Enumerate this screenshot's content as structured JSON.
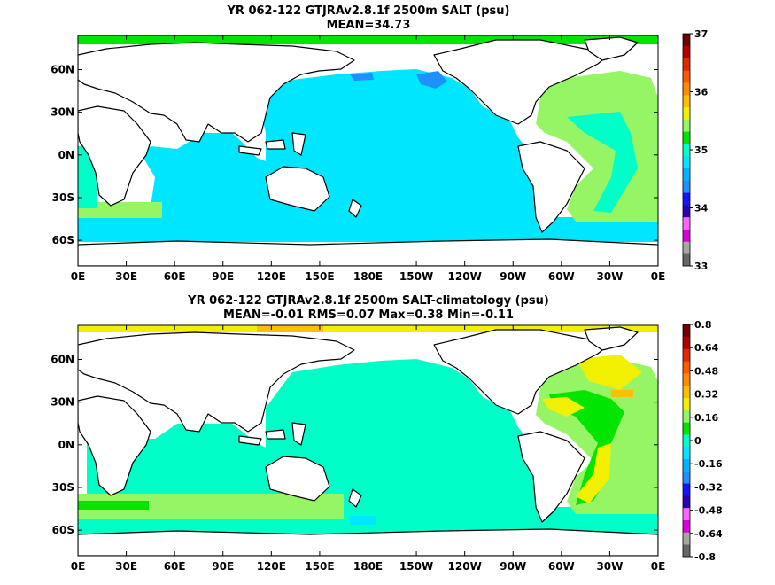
{
  "chart_data": [
    {
      "type": "heatmap",
      "title": "YR 062-122 GTJRAv2.8.1f 2500m SALT (psu)",
      "subtitle": "MEAN=34.73",
      "x_ticks": [
        "0E",
        "30E",
        "60E",
        "90E",
        "120E",
        "150E",
        "180E",
        "150W",
        "120W",
        "90W",
        "60W",
        "30W",
        "0E"
      ],
      "y_ticks": [
        "60N",
        "30N",
        "0N",
        "30S",
        "60S"
      ],
      "colorbar": {
        "range": [
          33,
          37
        ],
        "labels": [
          "37",
          "36",
          "35",
          "34",
          "33"
        ],
        "colors": [
          "#676767",
          "#a6a6a6",
          "#dc00dc",
          "#ff66ff",
          "#2a00b4",
          "#1414ff",
          "#1e90ff",
          "#00b4ff",
          "#00e6ff",
          "#00ffc8",
          "#00e600",
          "#96f564",
          "#f0f000",
          "#ffbe00",
          "#ff8c00",
          "#ff5a00",
          "#e62800",
          "#b40000",
          "#700000"
        ]
      },
      "field_description": {
        "mean": 34.73
      }
    },
    {
      "type": "heatmap",
      "title": "YR 062-122 GTJRAv2.8.1f 2500m SALT-climatology (psu)",
      "subtitle": "MEAN=-0.01   RMS=0.07   Max=0.38   Min=-0.11",
      "x_ticks": [
        "0E",
        "30E",
        "60E",
        "90E",
        "120E",
        "150E",
        "180E",
        "150W",
        "120W",
        "90W",
        "60W",
        "30W",
        "0E"
      ],
      "y_ticks": [
        "60N",
        "30N",
        "0N",
        "30S",
        "60S"
      ],
      "colorbar": {
        "range": [
          -0.8,
          0.8
        ],
        "labels": [
          "0.8",
          "0.64",
          "0.48",
          "0.32",
          "0.16",
          "0",
          "-0.16",
          "-0.32",
          "-0.48",
          "-0.64",
          "-0.8"
        ],
        "colors": [
          "#676767",
          "#a6a6a6",
          "#dc00dc",
          "#ff66ff",
          "#2a00b4",
          "#1414ff",
          "#1e90ff",
          "#00b4ff",
          "#00e6ff",
          "#00ffc8",
          "#00e600",
          "#96f564",
          "#f0f000",
          "#ffbe00",
          "#ff8c00",
          "#ff5a00",
          "#e62800",
          "#b40000",
          "#700000"
        ]
      },
      "stats": {
        "mean": -0.01,
        "rms": 0.07,
        "max": 0.38,
        "min": -0.11
      }
    }
  ]
}
